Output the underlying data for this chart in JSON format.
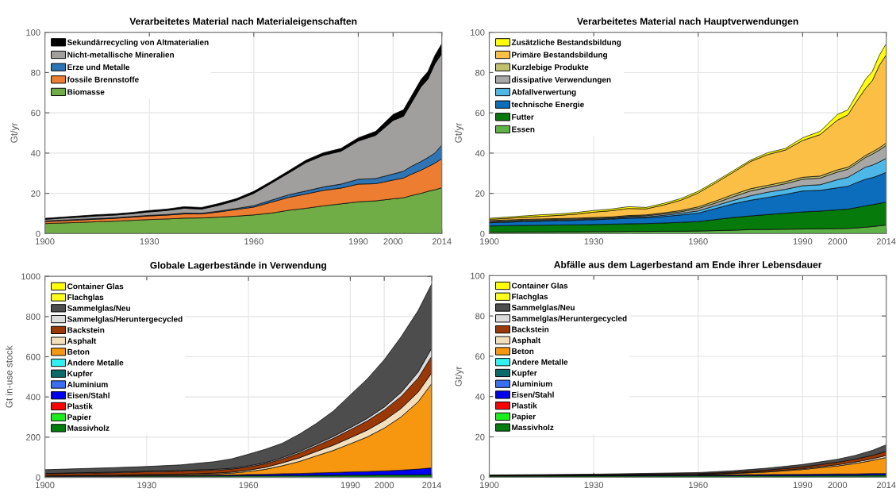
{
  "chart_data": [
    {
      "type": "area",
      "title": "Verarbeitetes Material nach Materialeigenschaften",
      "ylabel": "Gt/yr",
      "stacked": true,
      "grid": true,
      "legend": "top left",
      "xlim": [
        1900,
        2014
      ],
      "xticks": [
        1900,
        1930,
        1960,
        1990,
        2000,
        2014
      ],
      "ylim": [
        0,
        100
      ],
      "yticks": [
        0,
        20,
        40,
        60,
        80,
        100
      ],
      "x": [
        1900,
        1905,
        1910,
        1915,
        1920,
        1925,
        1930,
        1935,
        1940,
        1945,
        1950,
        1955,
        1960,
        1965,
        1970,
        1975,
        1980,
        1985,
        1990,
        1995,
        2000,
        2003,
        2005,
        2008,
        2010,
        2012,
        2014
      ],
      "series": [
        {
          "name": "Biomasse",
          "color": "#70ad47",
          "values": [
            5.0,
            5.3,
            5.6,
            5.9,
            6.2,
            6.6,
            7.0,
            7.3,
            7.7,
            7.8,
            8.2,
            8.7,
            9.3,
            10.2,
            11.6,
            12.6,
            13.8,
            14.8,
            15.8,
            16.3,
            17.3,
            17.8,
            18.8,
            20.0,
            21.0,
            21.8,
            22.8
          ]
        },
        {
          "name": "fossile Brennstoffe",
          "color": "#ed7d31",
          "values": [
            1.0,
            1.1,
            1.2,
            1.3,
            1.4,
            1.6,
            1.8,
            1.9,
            2.1,
            2.0,
            2.6,
            3.3,
            3.9,
            5.4,
            6.4,
            7.1,
            7.7,
            7.8,
            8.8,
            8.5,
            9.3,
            9.8,
            10.5,
            11.5,
            12.2,
            13.2,
            14.4
          ]
        },
        {
          "name": "Erze und Metalle",
          "color": "#2e75b6",
          "values": [
            0.3,
            0.3,
            0.3,
            0.3,
            0.3,
            0.3,
            0.3,
            0.3,
            0.4,
            0.3,
            0.4,
            0.5,
            0.7,
            1.0,
            1.3,
            1.5,
            1.7,
            2.0,
            2.4,
            2.6,
            3.0,
            3.4,
            3.9,
            4.3,
            4.6,
            5.0,
            6.8
          ]
        },
        {
          "name": "Nicht-metallische Mineralien",
          "color": "#a19e9e",
          "values": [
            0.8,
            1.0,
            1.1,
            1.3,
            1.3,
            1.4,
            1.7,
            2.0,
            2.4,
            2.1,
            2.9,
            4.0,
            6.1,
            8.4,
            10.8,
            14.1,
            15.7,
            16.3,
            19.0,
            21.4,
            26.6,
            27.3,
            30.9,
            37.1,
            38.9,
            44.3,
            45.4
          ]
        },
        {
          "name": "Sekundärrecycling von Altmaterialien",
          "color": "#000000",
          "values": [
            0.5,
            0.5,
            0.6,
            0.6,
            0.6,
            0.6,
            0.7,
            0.7,
            0.8,
            0.8,
            0.9,
            0.9,
            1.0,
            1.0,
            1.1,
            1.2,
            1.3,
            1.4,
            1.6,
            2.0,
            3.0,
            3.2,
            3.4,
            3.6,
            3.8,
            4.2,
            5.0
          ]
        }
      ]
    },
    {
      "type": "area",
      "title": "Verarbeitetes Material nach Hauptverwendungen",
      "ylabel": "Gt/yr",
      "stacked": true,
      "grid": true,
      "legend": "top left",
      "xlim": [
        1900,
        2014
      ],
      "xticks": [
        1900,
        1930,
        1960,
        1990,
        2000,
        2014
      ],
      "ylim": [
        0,
        100
      ],
      "yticks": [
        0,
        20,
        40,
        60,
        80,
        100
      ],
      "x": [
        1900,
        1905,
        1910,
        1915,
        1920,
        1925,
        1930,
        1935,
        1940,
        1945,
        1950,
        1955,
        1960,
        1965,
        1970,
        1975,
        1980,
        1985,
        1990,
        1995,
        2000,
        2003,
        2005,
        2008,
        2010,
        2012,
        2014
      ],
      "series": [
        {
          "name": "Essen",
          "color": "#5fb246",
          "values": [
            0.7,
            0.7,
            0.8,
            0.8,
            0.9,
            0.9,
            1.0,
            1.0,
            1.1,
            1.1,
            1.2,
            1.2,
            1.3,
            1.5,
            1.7,
            2.0,
            2.1,
            2.2,
            2.3,
            2.4,
            2.5,
            2.6,
            2.8,
            3.2,
            3.5,
            3.9,
            4.3
          ]
        },
        {
          "name": "Futter",
          "color": "#077a0c",
          "values": [
            3.1,
            3.3,
            3.3,
            3.4,
            3.4,
            3.5,
            3.5,
            3.7,
            3.8,
            3.9,
            4.1,
            4.4,
            4.7,
            5.5,
            6.3,
            6.8,
            7.4,
            8.0,
            8.5,
            8.8,
            9.3,
            9.6,
            10.0,
            10.6,
            10.9,
            11.1,
            11.4
          ]
        },
        {
          "name": "technische Energie",
          "color": "#0b6dbc",
          "values": [
            1.6,
            1.7,
            1.9,
            2.0,
            2.1,
            2.2,
            2.4,
            2.5,
            2.8,
            2.8,
            3.2,
            3.7,
            4.2,
            5.5,
            6.8,
            7.8,
            8.5,
            9.3,
            10.4,
            10.3,
            11.0,
            11.3,
            12.2,
            13.2,
            13.4,
            14.0,
            14.8
          ]
        },
        {
          "name": "Abfallverwertung",
          "color": "#4db8e8",
          "values": [
            0.3,
            0.3,
            0.3,
            0.3,
            0.3,
            0.3,
            0.3,
            0.3,
            0.4,
            0.5,
            0.6,
            0.8,
            1.1,
            1.4,
            1.7,
            2.2,
            2.6,
            2.5,
            2.6,
            2.8,
            4.0,
            4.5,
            5.0,
            6.0,
            6.2,
            6.6,
            6.9
          ]
        },
        {
          "name": "dissipative Verwendungen",
          "color": "#a7a7a7",
          "values": [
            0.4,
            0.4,
            0.4,
            0.4,
            0.4,
            0.4,
            0.4,
            0.4,
            0.5,
            0.6,
            0.7,
            0.8,
            1.2,
            1.3,
            1.8,
            2.4,
            2.4,
            2.8,
            3.2,
            3.3,
            3.8,
            4.0,
            4.2,
            4.8,
            5.5,
            5.9,
            6.4
          ]
        },
        {
          "name": "Kurzlebige Produkte",
          "color": "#c3c26c",
          "values": [
            0.4,
            0.4,
            0.4,
            0.4,
            0.4,
            0.4,
            0.4,
            0.4,
            0.4,
            0.4,
            0.5,
            0.6,
            0.8,
            1.0,
            1.1,
            1.1,
            1.0,
            1.0,
            1.0,
            1.0,
            1.1,
            1.0,
            1.0,
            1.0,
            1.1,
            1.1,
            1.2
          ]
        },
        {
          "name": "Primäre Bestandsbildung",
          "color": "#fbbf45",
          "values": [
            0.6,
            0.8,
            1.0,
            1.3,
            1.6,
            2.0,
            2.7,
            3.1,
            3.5,
            3.0,
            3.9,
            5.1,
            6.9,
            9.0,
            11.0,
            13.5,
            15.3,
            15.7,
            18.3,
            20.6,
            24.7,
            26.0,
            29.3,
            33.2,
            35.4,
            40.9,
            43.8
          ]
        },
        {
          "name": "Zusätzliche Bestandsbildung",
          "color": "#ffff00",
          "values": [
            0.5,
            0.6,
            0.7,
            0.8,
            0.7,
            0.8,
            0.8,
            0.8,
            0.9,
            0.7,
            0.8,
            0.8,
            0.8,
            0.8,
            0.8,
            0.7,
            0.9,
            0.8,
            1.3,
            1.6,
            2.8,
            2.5,
            3.0,
            4.5,
            4.5,
            5.0,
            5.6
          ]
        }
      ]
    },
    {
      "type": "area",
      "title": "Globale Lagerbestände in Verwendung",
      "ylabel": "Gt in-use stock",
      "stacked": true,
      "grid": true,
      "legend": "top left",
      "xlim": [
        1900,
        2014
      ],
      "xticks": [
        1900,
        1930,
        1960,
        1990,
        2000,
        2014
      ],
      "ylim": [
        0,
        1000
      ],
      "yticks": [
        0,
        200,
        400,
        600,
        800,
        1000
      ],
      "x": [
        1900,
        1910,
        1920,
        1930,
        1940,
        1950,
        1955,
        1960,
        1965,
        1970,
        1975,
        1980,
        1985,
        1990,
        1995,
        2000,
        2005,
        2010,
        2014
      ],
      "series": [
        {
          "name": "Massivholz",
          "color": "#007f0e",
          "values": [
            4,
            5,
            5,
            6,
            6,
            7,
            7,
            8,
            8,
            9,
            9,
            10,
            10,
            11,
            11,
            12,
            12,
            13,
            14
          ]
        },
        {
          "name": "Papier",
          "color": "#19f019",
          "values": [
            null,
            null,
            null,
            null,
            null,
            null,
            null,
            null,
            null,
            null,
            null,
            null,
            null,
            null,
            null,
            null,
            null,
            null,
            null
          ]
        },
        {
          "name": "Plastik",
          "color": "#ff0000",
          "values": [
            null,
            null,
            null,
            null,
            null,
            null,
            null,
            null,
            null,
            null,
            null,
            null,
            null,
            null,
            null,
            null,
            null,
            null,
            null
          ]
        },
        {
          "name": "Eisen/Stahl",
          "color": "#0000f0",
          "values": [
            1,
            2,
            2,
            3,
            3,
            4,
            5,
            6,
            7,
            9,
            10,
            12,
            14,
            16,
            18,
            20,
            24,
            28,
            33
          ]
        },
        {
          "name": "Aluminium",
          "color": "#3a6ef5",
          "values": [
            null,
            null,
            null,
            null,
            null,
            null,
            null,
            null,
            null,
            null,
            null,
            null,
            null,
            null,
            null,
            null,
            null,
            null,
            null
          ]
        },
        {
          "name": "Kupfer",
          "color": "#0b6b6b",
          "values": [
            null,
            null,
            null,
            null,
            null,
            null,
            null,
            null,
            null,
            null,
            null,
            null,
            null,
            null,
            null,
            null,
            null,
            null,
            null
          ]
        },
        {
          "name": "Andere Metalle",
          "color": "#2ef2f2",
          "values": [
            null,
            null,
            null,
            null,
            null,
            null,
            null,
            null,
            null,
            null,
            null,
            null,
            null,
            null,
            null,
            null,
            null,
            null,
            null
          ]
        },
        {
          "name": "Beton",
          "color": "#f7960f",
          "values": [
            1,
            2,
            2,
            3,
            4,
            6,
            9,
            15,
            25,
            40,
            60,
            85,
            110,
            140,
            172,
            213,
            265,
            335,
            420
          ]
        },
        {
          "name": "Asphalt",
          "color": "#f4dfbc",
          "values": [
            1,
            1,
            2,
            2,
            3,
            4,
            5,
            7,
            10,
            14,
            18,
            22,
            26,
            30,
            34,
            38,
            42,
            48,
            53
          ]
        },
        {
          "name": "Backstein",
          "color": "#9a3806",
          "values": [
            10,
            11,
            12,
            14,
            15,
            15,
            15,
            16,
            18,
            20,
            24,
            28,
            34,
            40,
            46,
            52,
            60,
            70,
            83
          ]
        },
        {
          "name": "Sammelglas/Heruntergecycled",
          "color": "#dcdcdc",
          "values": [
            2,
            2,
            3,
            3,
            3,
            4,
            4,
            5,
            5,
            6,
            7,
            8,
            9,
            10,
            12,
            14,
            20,
            30,
            40
          ]
        },
        {
          "name": "Sammelglas/Neu",
          "color": "#4d4d4d",
          "values": [
            19,
            20,
            22,
            23,
            28,
            38,
            47,
            58,
            67,
            72,
            87,
            103,
            127,
            163,
            197,
            236,
            277,
            306,
            320
          ]
        },
        {
          "name": "Flachglas",
          "color": "#ffff1a",
          "values": [
            null,
            null,
            null,
            null,
            null,
            null,
            null,
            null,
            null,
            null,
            null,
            null,
            null,
            null,
            null,
            null,
            null,
            null,
            null
          ]
        },
        {
          "name": "Container Glas",
          "color": "#ffff00",
          "values": [
            null,
            null,
            null,
            null,
            null,
            null,
            null,
            null,
            null,
            null,
            null,
            null,
            null,
            null,
            null,
            null,
            null,
            null,
            null
          ]
        }
      ]
    },
    {
      "type": "area",
      "title": "Abfälle aus dem Lagerbestand am Ende ihrer Lebensdauer",
      "ylabel": "Gt/yr",
      "stacked": true,
      "grid": true,
      "legend": "top left",
      "xlim": [
        1900,
        2014
      ],
      "xticks": [
        1900,
        1930,
        1960,
        1990,
        2000,
        2014
      ],
      "ylim": [
        0,
        100
      ],
      "yticks": [
        0,
        20,
        40,
        60,
        80,
        100
      ],
      "x": [
        1900,
        1930,
        1960,
        1970,
        1980,
        1990,
        2000,
        2005,
        2010,
        2014
      ],
      "series": [
        {
          "name": "Massivholz",
          "color": "#007f0e",
          "values": [
            0.5,
            0.6,
            0.7,
            0.7,
            0.8,
            0.8,
            0.9,
            0.9,
            1.0,
            1.0
          ]
        },
        {
          "name": "Papier",
          "color": "#19f019",
          "values": [
            null,
            null,
            null,
            null,
            null,
            null,
            null,
            null,
            null,
            null
          ]
        },
        {
          "name": "Plastik",
          "color": "#ff0000",
          "values": [
            null,
            null,
            null,
            null,
            null,
            null,
            null,
            null,
            null,
            null
          ]
        },
        {
          "name": "Eisen/Stahl",
          "color": "#0000f0",
          "values": [
            0.2,
            0.3,
            0.4,
            0.5,
            0.5,
            0.6,
            0.7,
            0.7,
            0.8,
            0.8
          ]
        },
        {
          "name": "Aluminium",
          "color": "#3a6ef5",
          "values": [
            null,
            null,
            null,
            null,
            null,
            null,
            null,
            null,
            null,
            null
          ]
        },
        {
          "name": "Kupfer",
          "color": "#0b6b6b",
          "values": [
            null,
            null,
            null,
            null,
            null,
            null,
            null,
            null,
            null,
            null
          ]
        },
        {
          "name": "Andere Metalle",
          "color": "#2ef2f2",
          "values": [
            null,
            null,
            null,
            null,
            null,
            null,
            null,
            null,
            null,
            null
          ]
        },
        {
          "name": "Beton",
          "color": "#f7960f",
          "values": [
            0,
            0,
            0.2,
            0.6,
            1.3,
            2.4,
            4.0,
            5.2,
            6.5,
            8.0
          ]
        },
        {
          "name": "Asphalt",
          "color": "#f4dfbc",
          "values": [
            0,
            0,
            0.1,
            0.2,
            0.3,
            0.4,
            0.6,
            0.7,
            0.8,
            1.0
          ]
        },
        {
          "name": "Backstein",
          "color": "#9a3806",
          "values": [
            0.2,
            0.3,
            0.4,
            0.5,
            0.7,
            0.9,
            1.2,
            1.4,
            1.7,
            2.0
          ]
        },
        {
          "name": "Sammelglas/Heruntergecycled",
          "color": "#dcdcdc",
          "values": [
            null,
            null,
            null,
            null,
            null,
            null,
            null,
            null,
            null,
            null
          ]
        },
        {
          "name": "Sammelglas/Neu",
          "color": "#4d4d4d",
          "values": [
            0.2,
            0.3,
            0.5,
            0.7,
            0.9,
            1.2,
            1.5,
            1.9,
            2.5,
            3.3
          ]
        },
        {
          "name": "Flachglas",
          "color": "#ffff1a",
          "values": [
            null,
            null,
            null,
            null,
            null,
            null,
            null,
            null,
            null,
            null
          ]
        },
        {
          "name": "Container Glas",
          "color": "#ffff00",
          "values": [
            null,
            null,
            null,
            null,
            null,
            null,
            null,
            null,
            null,
            null
          ]
        }
      ]
    }
  ]
}
